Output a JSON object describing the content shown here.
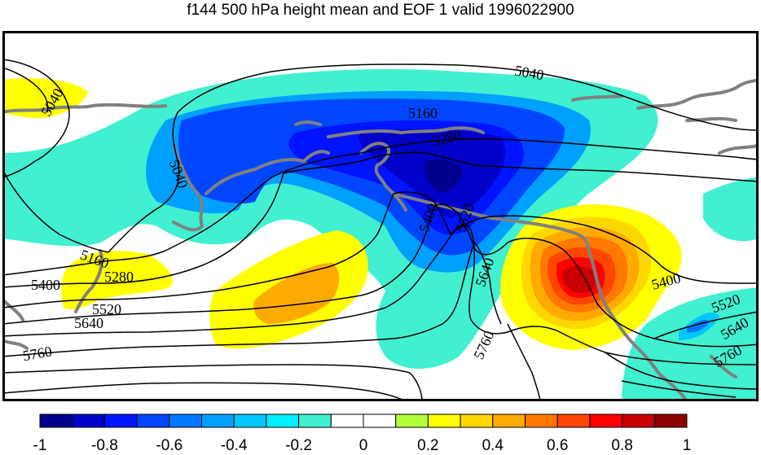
{
  "title": "f144 500 hPa height mean and EOF 1 valid 1996022900",
  "contour_labels": [
    "5040",
    "5040",
    "5040",
    "5160",
    "5160",
    "5280",
    "5280",
    "5400",
    "5400",
    "5400",
    "5520",
    "5520",
    "5520",
    "5640",
    "5640",
    "5640",
    "5760",
    "5760",
    "5760"
  ],
  "colorbar": {
    "colors": [
      "#00008c",
      "#0000c8",
      "#0014ff",
      "#0046ff",
      "#0078ff",
      "#00a0ff",
      "#00c8ff",
      "#00f0ff",
      "#40f0d0",
      "#ffffff",
      "#ffffff",
      "#b4ff3c",
      "#ffff00",
      "#ffd700",
      "#ffaa00",
      "#ff7800",
      "#ff4600",
      "#ff0000",
      "#c80000",
      "#8c0000"
    ],
    "tick_labels": [
      "-1",
      "-0.8",
      "-0.6",
      "-0.4",
      "-0.2",
      "0",
      "0.2",
      "0.4",
      "0.6",
      "0.8",
      "1"
    ]
  },
  "style": {
    "coast_color": "#808080",
    "contour_color": "#000000"
  }
}
